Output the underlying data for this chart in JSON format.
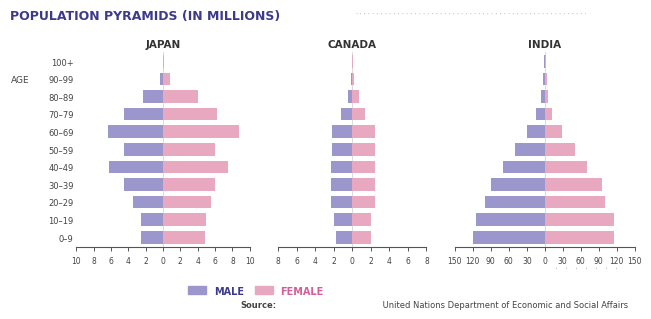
{
  "title": "POPULATION PYRAMIDS (IN MILLIONS)",
  "title_color": "#3d3a8c",
  "source_label": "Source:",
  "source_rest": " United Nations Department of Economic and Social Affairs",
  "age_labels": [
    "100+",
    "90–99",
    "80–89",
    "70–79",
    "60–69",
    "50–59",
    "40–49",
    "30–39",
    "20–29",
    "10–19",
    "0–9"
  ],
  "male_color": "#9b97cc",
  "female_color": "#e8a8c0",
  "japan": {
    "title": "JAPAN",
    "male": [
      0.05,
      0.3,
      2.3,
      4.5,
      6.3,
      4.5,
      6.2,
      4.5,
      3.5,
      2.5,
      2.5
    ],
    "female": [
      0.1,
      0.8,
      4.0,
      6.2,
      8.8,
      6.0,
      7.5,
      6.0,
      5.5,
      5.0,
      4.8
    ],
    "xlim": 10,
    "xticks": [
      -10,
      -8,
      -6,
      -4,
      -2,
      0,
      2,
      4,
      6,
      8,
      10
    ],
    "xticklabels": [
      "10",
      "8",
      "6",
      "4",
      "2",
      "0",
      "2",
      "4",
      "6",
      "8",
      "10"
    ]
  },
  "canada": {
    "title": "CANADA",
    "male": [
      0.05,
      0.1,
      0.5,
      1.2,
      2.2,
      2.2,
      2.3,
      2.3,
      2.3,
      2.0,
      1.8
    ],
    "female": [
      0.05,
      0.2,
      0.7,
      1.4,
      2.5,
      2.5,
      2.5,
      2.5,
      2.5,
      2.0,
      2.0
    ],
    "xlim": 8,
    "xticks": [
      -8,
      -6,
      -4,
      -2,
      0,
      2,
      4,
      6,
      8
    ],
    "xticklabels": [
      "8",
      "6",
      "4",
      "2",
      "0",
      "2",
      "4",
      "6",
      "8"
    ]
  },
  "india": {
    "title": "INDIA",
    "male": [
      2,
      3,
      6,
      15,
      30,
      50,
      70,
      90,
      100,
      115,
      120
    ],
    "female": [
      2,
      3,
      6,
      12,
      28,
      50,
      70,
      95,
      100,
      115,
      115
    ],
    "xlim": 150,
    "xticks": [
      -150,
      -120,
      -90,
      -60,
      -30,
      0,
      30,
      60,
      90,
      120,
      150
    ],
    "xticklabels": [
      "150",
      "120",
      "90",
      "60",
      "30",
      "0",
      "30",
      "60",
      "90",
      "120",
      "150"
    ]
  },
  "background_color": "#ffffff",
  "dotted_color": "#bbbbbb"
}
